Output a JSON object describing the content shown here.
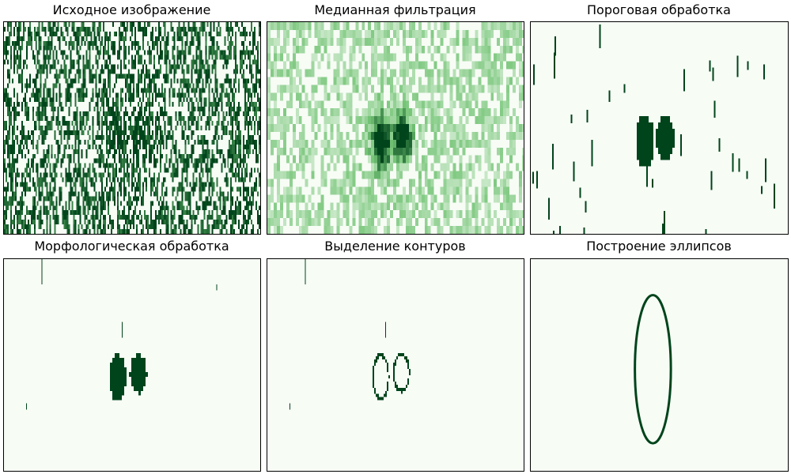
{
  "figure": {
    "colormap": "Greens",
    "colors": {
      "low": "#f7fcf5",
      "mid": "#74c476",
      "high": "#00441b"
    }
  },
  "chart_data": [
    {
      "type": "heatmap",
      "title": "Исходное изображение",
      "description_of_content": "dense vertical streak noise with faint dark blob near center",
      "content_key": "noise"
    },
    {
      "type": "heatmap",
      "title": "Медианная фильтрация",
      "content_key": "median"
    },
    {
      "type": "heatmap",
      "title": "Пороговая обработка",
      "content_key": "threshold"
    },
    {
      "type": "heatmap",
      "title": "Морфологическая обработка",
      "content_key": "morph"
    },
    {
      "type": "heatmap",
      "title": "Выделение контуров",
      "content_key": "contour"
    },
    {
      "type": "heatmap",
      "title": "Построение эллипсов",
      "content_key": "ellipse"
    }
  ]
}
